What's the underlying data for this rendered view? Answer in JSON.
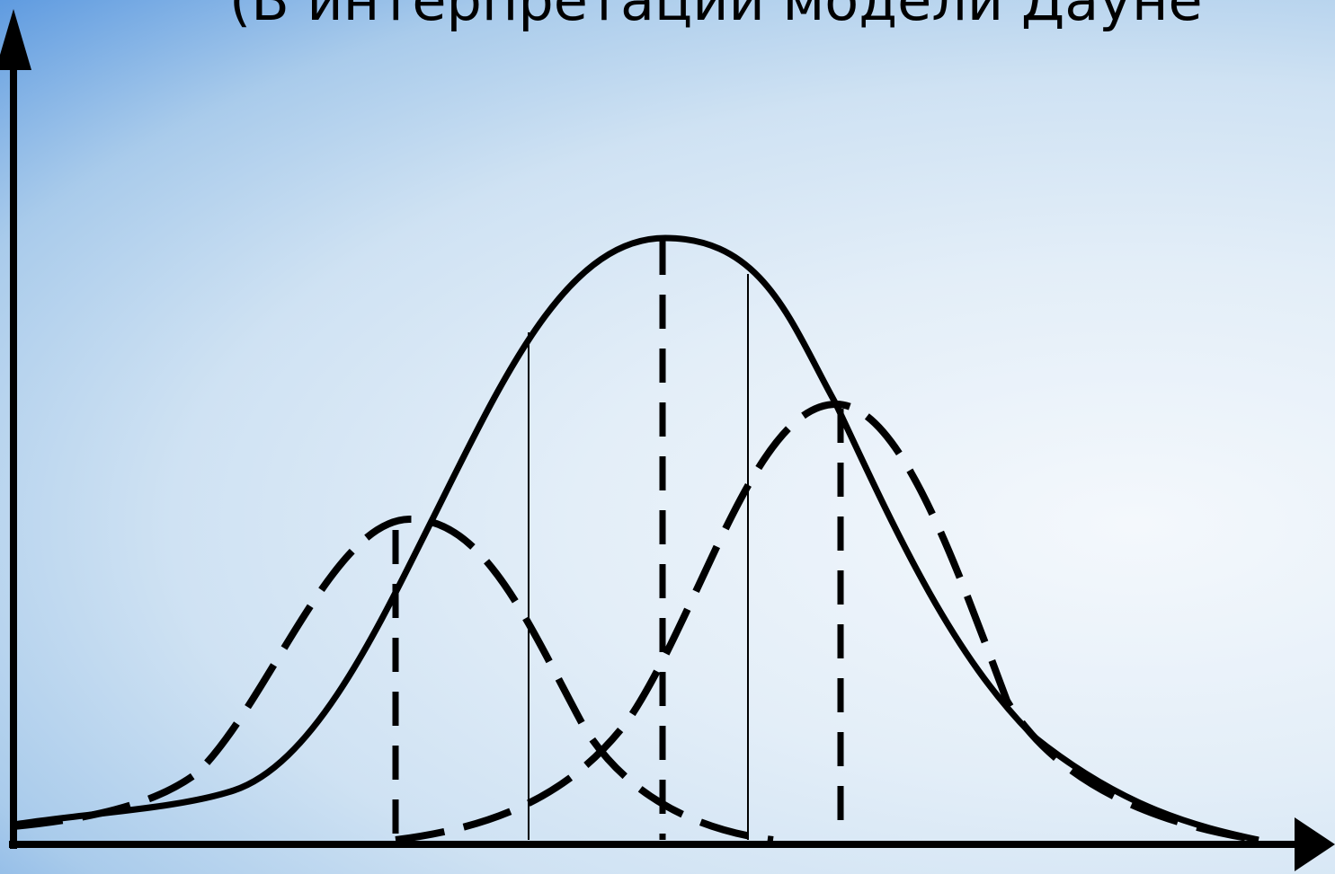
{
  "header": {
    "title": "(В интерпретации модели Дауне"
  }
}
